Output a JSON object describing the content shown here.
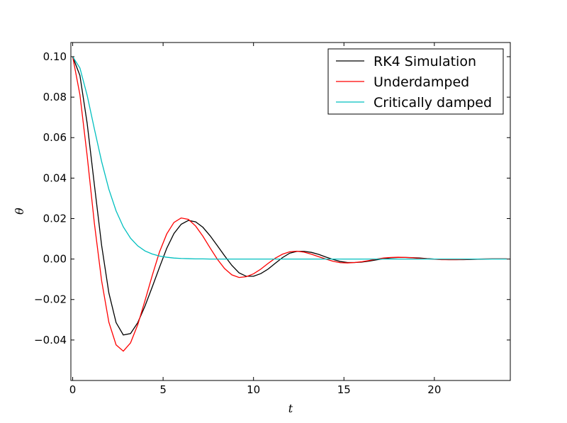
{
  "chart_data": {
    "type": "line",
    "xlabel": "t",
    "ylabel": "θ",
    "xlim": [
      -0.1,
      24.2
    ],
    "ylim": [
      -0.06,
      0.107
    ],
    "xticks": [
      0,
      5,
      10,
      15,
      20
    ],
    "xtick_labels": [
      "0",
      "5",
      "10",
      "15",
      "20"
    ],
    "yticks": [
      0.1,
      0.08,
      0.06,
      0.04,
      0.02,
      0.0,
      -0.02,
      -0.04
    ],
    "ytick_labels": [
      "0.10",
      "0.08",
      "0.06",
      "0.04",
      "0.02",
      "0.00",
      "−0.02",
      "−0.04"
    ],
    "grid": false,
    "legend_position": "top-right",
    "series": [
      {
        "name": "RK4 Simulation",
        "color": "#000000",
        "x": [
          0,
          0.4,
          0.8,
          1.2,
          1.6,
          2.0,
          2.4,
          2.8,
          3.2,
          3.6,
          4.0,
          4.4,
          4.8,
          5.2,
          5.6,
          6.0,
          6.4,
          6.8,
          7.2,
          7.6,
          8.0,
          8.4,
          8.8,
          9.2,
          9.6,
          10.0,
          10.4,
          10.8,
          11.2,
          11.6,
          12.0,
          12.4,
          12.8,
          13.2,
          13.6,
          14.0,
          14.4,
          14.8,
          15.2,
          15.6,
          16.0,
          16.4,
          16.8,
          17.2,
          17.6,
          18.0,
          18.4,
          18.8,
          19.2,
          19.6,
          20.0,
          20.4,
          20.8,
          21.2,
          21.6,
          22.0,
          22.4,
          22.8,
          23.2,
          23.6,
          24.0
        ],
        "y": [
          0.1,
          0.0907,
          0.0671,
          0.0367,
          0.0068,
          -0.0167,
          -0.0314,
          -0.0375,
          -0.0368,
          -0.0314,
          -0.0232,
          -0.0138,
          -0.0041,
          0.0053,
          0.0126,
          0.0172,
          0.0191,
          0.0184,
          0.0157,
          0.0115,
          0.0066,
          0.0016,
          -0.0031,
          -0.0068,
          -0.0085,
          -0.0085,
          -0.0072,
          -0.005,
          -0.0021,
          0.0007,
          0.0029,
          0.0038,
          0.0038,
          0.0033,
          0.0023,
          0.001,
          -0.0002,
          -0.0012,
          -0.0017,
          -0.0017,
          -0.0015,
          -0.001,
          -0.0004,
          0.0002,
          0.0006,
          0.0008,
          0.0008,
          0.0007,
          0.0005,
          0.0002,
          0.0,
          -0.0002,
          -0.0003,
          -0.0003,
          -0.0003,
          -0.0002,
          -0.0001,
          0.0,
          0.0001,
          0.0001,
          0.0001
        ]
      },
      {
        "name": "Underdamped",
        "color": "#ff0000",
        "x": [
          0,
          0.4,
          0.8,
          1.2,
          1.6,
          2.0,
          2.4,
          2.8,
          3.2,
          3.6,
          4.0,
          4.4,
          4.8,
          5.2,
          5.6,
          6.0,
          6.4,
          6.8,
          7.2,
          7.6,
          8.0,
          8.4,
          8.8,
          9.2,
          9.6,
          10.0,
          10.4,
          10.8,
          11.2,
          11.6,
          12.0,
          12.4,
          12.8,
          13.2,
          13.6,
          14.0,
          14.4,
          14.8,
          15.2,
          15.6,
          16.0,
          16.4,
          16.8,
          17.2,
          17.6,
          18.0,
          18.4,
          18.8,
          19.2,
          19.6,
          20.0,
          20.4,
          20.8,
          21.2,
          21.6,
          22.0,
          22.4,
          22.8,
          23.2,
          23.6,
          24.0
        ],
        "y": [
          0.1,
          0.0812,
          0.0511,
          0.0176,
          -0.0107,
          -0.0312,
          -0.0424,
          -0.0455,
          -0.0414,
          -0.0324,
          -0.0205,
          -0.0081,
          0.0035,
          0.0124,
          0.0181,
          0.0203,
          0.0196,
          0.0163,
          0.0113,
          0.0055,
          -0.0001,
          -0.0047,
          -0.0078,
          -0.0091,
          -0.0087,
          -0.0073,
          -0.005,
          -0.0022,
          0.0004,
          0.0024,
          0.0036,
          0.0039,
          0.0034,
          0.0024,
          0.0012,
          0.0,
          -0.0011,
          -0.0018,
          -0.0019,
          -0.0017,
          -0.0013,
          -0.0007,
          0.0,
          0.0005,
          0.0008,
          0.0009,
          0.0008,
          0.0006,
          0.0003,
          0.0001,
          -0.0001,
          -0.0003,
          -0.0003,
          -0.0003,
          -0.0002,
          -0.0001,
          0.0,
          0.0001,
          0.0001,
          0.0001,
          0.0001
        ]
      },
      {
        "name": "Critically damped",
        "color": "#00bfbf",
        "x": [
          0,
          0.4,
          0.8,
          1.2,
          1.6,
          2.0,
          2.4,
          2.8,
          3.2,
          3.6,
          4.0,
          4.4,
          4.8,
          5.2,
          5.6,
          6.0,
          6.4,
          6.8,
          7.2,
          7.6,
          8.0,
          8.4,
          8.8,
          9.2,
          9.6,
          10.0,
          10.4,
          10.8,
          11.2,
          11.6,
          12.0,
          12.4,
          12.8,
          13.2,
          13.6,
          14.0,
          14.4,
          14.8,
          15.2,
          15.6,
          16.0,
          16.4,
          16.8,
          17.2,
          17.6,
          18.0,
          18.4,
          18.8,
          19.2,
          19.6,
          20.0,
          20.4,
          20.8,
          21.2,
          21.6,
          22.0,
          22.4,
          22.8,
          23.2,
          23.6,
          24.0
        ],
        "y": [
          0.1,
          0.0944,
          0.0809,
          0.0643,
          0.0482,
          0.0345,
          0.0238,
          0.0159,
          0.0103,
          0.0065,
          0.004,
          0.0025,
          0.0015,
          0.0009,
          0.0005,
          0.0003,
          0.0002,
          0.0001,
          0.0001,
          0.0,
          0.0,
          0.0,
          0.0,
          0.0,
          0.0,
          0.0,
          0.0,
          0.0,
          0.0,
          0.0,
          0.0,
          0.0,
          0.0,
          0.0,
          0.0,
          0.0,
          0.0,
          0.0,
          0.0,
          0.0,
          0.0,
          0.0,
          0.0,
          0.0,
          0.0,
          0.0,
          0.0,
          0.0,
          0.0,
          0.0,
          0.0,
          0.0,
          0.0,
          0.0,
          0.0,
          0.0,
          0.0,
          0.0,
          0.0,
          0.0,
          0.0
        ]
      }
    ]
  }
}
